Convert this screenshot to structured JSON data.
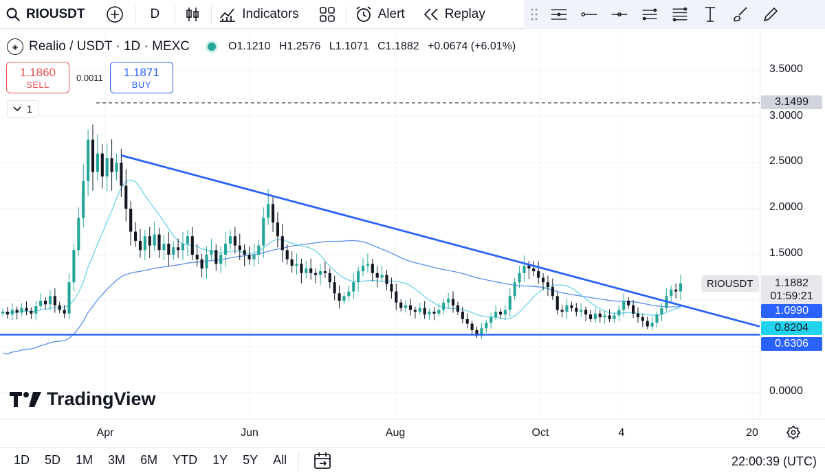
{
  "toolbar": {
    "symbol": "RIOUSDT",
    "interval": "D",
    "indicators_label": "Indicators",
    "alert_label": "Alert",
    "replay_label": "Replay"
  },
  "legend": {
    "title": "Realio / USDT · 1D · MEXC",
    "open": "O1.1210",
    "high": "H1.2576",
    "low": "L1.1071",
    "close": "C1.1882",
    "change": "+0.0674 (+6.01%)"
  },
  "trade": {
    "sell_price": "1.1860",
    "sell_label": "SELL",
    "spread": "0.0011",
    "buy_price": "1.1871",
    "buy_label": "BUY"
  },
  "collapse_count": "1",
  "watermark": "TradingView",
  "price_axis": {
    "ticks": [
      "3.5000",
      "3.0000",
      "2.5000",
      "2.0000",
      "1.5000",
      "0.0000"
    ],
    "high_marker": "3.1499",
    "current_price": "1.1882",
    "countdown": "01:59:21",
    "ma_value_1": "1.0990",
    "ma_value_2": "0.8204",
    "support_value": "0.6306",
    "symbol_tag": "RIOUSDT"
  },
  "time_axis": {
    "labels": [
      "Apr",
      "Jun",
      "Aug",
      "Oct",
      "4",
      "20"
    ]
  },
  "ranges": [
    "1D",
    "5D",
    "1M",
    "3M",
    "6M",
    "YTD",
    "1Y",
    "5Y",
    "All"
  ],
  "clock": "22:00:39 (UTC)",
  "colors": {
    "up": "#26a69a",
    "down": "#131722",
    "trendline": "#2962ff",
    "ma_fast": "#6dd1e8",
    "ma_slow": "#5b8def",
    "sell": "#ef5350",
    "buy": "#2962ff"
  },
  "chart_data": {
    "type": "candlestick",
    "symbol": "RIOUSDT",
    "timeframe": "1D",
    "ylim": [
      0,
      3.5
    ],
    "last_close": 1.1882,
    "period_high": 3.1499,
    "support_line": 0.6306,
    "descending_trendline": {
      "from": {
        "date": "Apr ~5",
        "price": 2.58
      },
      "to": {
        "date": "Oct ~end",
        "price": 0.72
      }
    },
    "closes": [
      0.88,
      0.85,
      0.9,
      0.87,
      0.92,
      0.89,
      0.86,
      0.94,
      1.0,
      0.96,
      1.05,
      0.95,
      0.9,
      0.86,
      1.2,
      1.55,
      1.9,
      2.3,
      2.75,
      2.4,
      2.6,
      2.35,
      2.55,
      2.4,
      2.5,
      2.25,
      2.0,
      1.75,
      1.65,
      1.55,
      1.7,
      1.6,
      1.72,
      1.55,
      1.62,
      1.5,
      1.58,
      1.55,
      1.62,
      1.7,
      1.5,
      1.45,
      1.35,
      1.5,
      1.55,
      1.4,
      1.5,
      1.62,
      1.7,
      1.6,
      1.55,
      1.5,
      1.45,
      1.5,
      1.6,
      1.9,
      2.05,
      1.85,
      1.7,
      1.55,
      1.45,
      1.38,
      1.4,
      1.3,
      1.35,
      1.3,
      1.28,
      1.32,
      1.3,
      1.2,
      1.08,
      1.0,
      1.05,
      1.1,
      1.2,
      1.32,
      1.38,
      1.4,
      1.3,
      1.25,
      1.28,
      1.18,
      1.1,
      0.98,
      0.92,
      0.95,
      0.9,
      0.88,
      0.92,
      0.85,
      0.88,
      0.86,
      0.9,
      0.98,
      1.02,
      0.95,
      0.88,
      0.8,
      0.75,
      0.68,
      0.62,
      0.7,
      0.76,
      0.82,
      0.88,
      0.85,
      0.9,
      1.05,
      1.2,
      1.3,
      1.38,
      1.35,
      1.32,
      1.25,
      1.2,
      1.15,
      1.05,
      0.9,
      0.88,
      0.95,
      0.92,
      0.88,
      0.9,
      0.85,
      0.8,
      0.86,
      0.82,
      0.84,
      0.8,
      0.84,
      0.9,
      1.0,
      0.95,
      0.86,
      0.82,
      0.78,
      0.72,
      0.76,
      0.85,
      0.92,
      1.05,
      1.12,
      1.1,
      1.1882
    ]
  }
}
